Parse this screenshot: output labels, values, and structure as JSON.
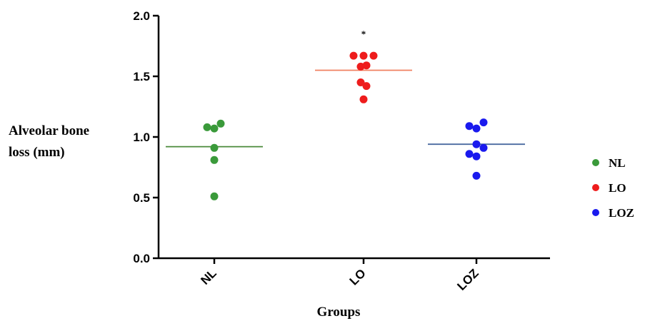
{
  "chart_data": {
    "type": "scatter",
    "ylabel_lines": [
      "Alveolar bone",
      "loss (mm)"
    ],
    "xlabel": "Groups",
    "ylim": [
      0,
      2.0
    ],
    "yticks": [
      "0.0",
      "0.5",
      "1.0",
      "1.5",
      "2.0"
    ],
    "ytick_values": [
      0,
      0.5,
      1.0,
      1.5,
      2.0
    ],
    "categories": [
      "NL",
      "LO",
      "LOZ"
    ],
    "legend_position": "right",
    "series": [
      {
        "name": "NL",
        "color": "#3a9a3a",
        "mean_line_color": "#4a8a3a",
        "points": [
          {
            "dx": -0.5,
            "y": 1.08
          },
          {
            "dx": 0.0,
            "y": 1.07
          },
          {
            "dx": 0.45,
            "y": 1.11
          },
          {
            "dx": 0.0,
            "y": 0.91
          },
          {
            "dx": 0.0,
            "y": 0.81
          },
          {
            "dx": 0.0,
            "y": 0.51
          }
        ],
        "mean": 0.92
      },
      {
        "name": "LO",
        "color": "#ee1c1c",
        "mean_line_color": "#f08060",
        "points": [
          {
            "dx": -0.7,
            "y": 1.67
          },
          {
            "dx": 0.0,
            "y": 1.67
          },
          {
            "dx": 0.7,
            "y": 1.67
          },
          {
            "dx": -0.2,
            "y": 1.58
          },
          {
            "dx": 0.2,
            "y": 1.59
          },
          {
            "dx": -0.2,
            "y": 1.45
          },
          {
            "dx": 0.2,
            "y": 1.42
          },
          {
            "dx": 0.0,
            "y": 1.31
          }
        ],
        "mean": 1.55
      },
      {
        "name": "LOZ",
        "color": "#1a1aee",
        "mean_line_color": "#4a6aa0",
        "points": [
          {
            "dx": -0.5,
            "y": 1.09
          },
          {
            "dx": 0.0,
            "y": 1.07
          },
          {
            "dx": 0.5,
            "y": 1.12
          },
          {
            "dx": -0.5,
            "y": 0.86
          },
          {
            "dx": 0.0,
            "y": 0.94
          },
          {
            "dx": 0.5,
            "y": 0.91
          },
          {
            "dx": 0.0,
            "y": 0.84
          },
          {
            "dx": 0.0,
            "y": 0.68
          }
        ],
        "mean": 0.94
      }
    ],
    "annotations": [
      {
        "text": "*",
        "category": "LO",
        "y": 1.86
      }
    ]
  }
}
